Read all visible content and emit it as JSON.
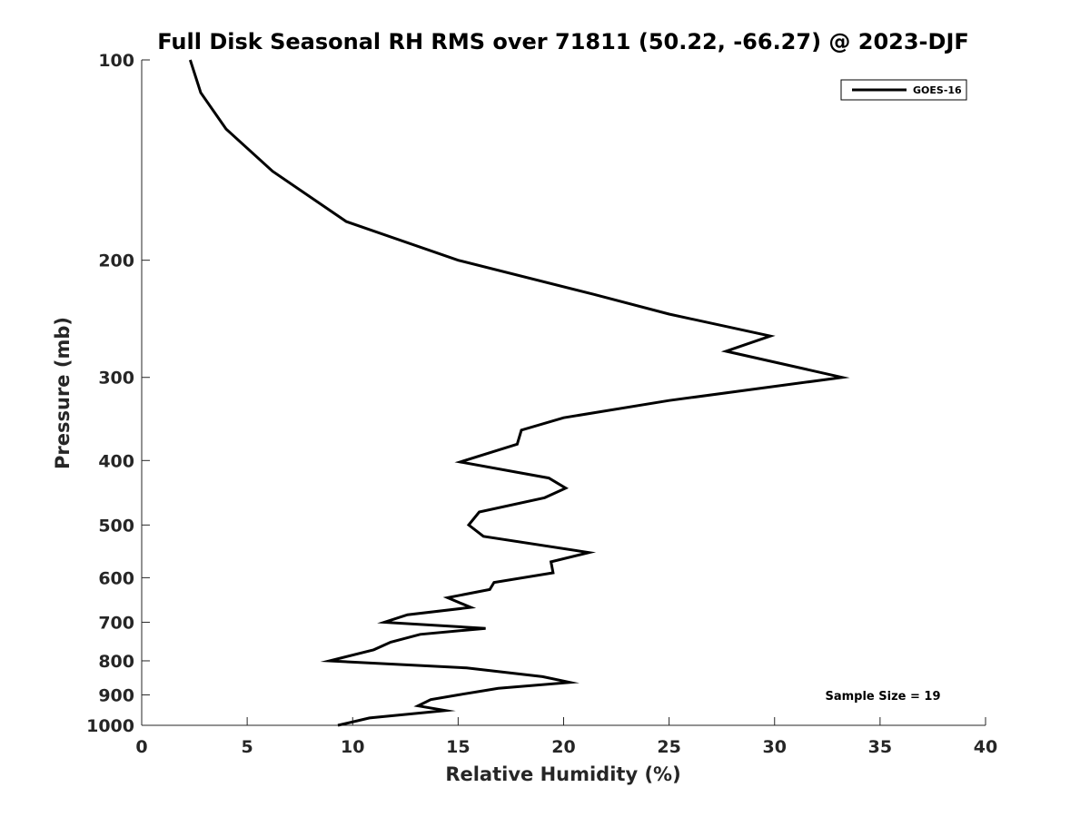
{
  "chart_data": {
    "type": "line",
    "title": "Full Disk Seasonal RH RMS over 71811 (50.22, -66.27) @ 2023-DJF",
    "xlabel": "Relative Humidity (%)",
    "ylabel": "Pressure (mb)",
    "xlim": [
      0,
      40
    ],
    "ylim": [
      100,
      1000
    ],
    "y_scale": "log",
    "y_reversed": true,
    "x_ticks": [
      0,
      5,
      10,
      15,
      20,
      25,
      30,
      35,
      40
    ],
    "y_ticks": [
      100,
      200,
      300,
      400,
      500,
      600,
      700,
      800,
      900,
      1000
    ],
    "grid": false,
    "legend_position": "top-right",
    "annotation": "Sample Size = 19",
    "series": [
      {
        "name": "GOES-16",
        "color": "#000000",
        "x": [
          2.3,
          2.8,
          4.0,
          6.2,
          9.7,
          15.0,
          21.4,
          25.0,
          29.8,
          27.7,
          33.2,
          25.0,
          20.0,
          18.0,
          17.8,
          15.1,
          19.3,
          20.1,
          19.1,
          16.0,
          15.5,
          16.2,
          21.2,
          19.4,
          19.5,
          16.7,
          16.5,
          14.5,
          15.6,
          12.6,
          11.5,
          16.3,
          13.2,
          11.8,
          11.0,
          8.9,
          15.4,
          19.0,
          20.3,
          16.9,
          15.0,
          13.7,
          13.1,
          14.4,
          10.8,
          9.3
        ],
        "y": [
          100,
          112,
          127,
          147,
          175,
          200,
          225,
          241,
          260,
          274,
          300,
          325,
          345,
          360,
          378,
          402,
          425,
          440,
          455,
          478,
          500,
          520,
          550,
          568,
          590,
          610,
          625,
          643,
          665,
          682,
          700,
          715,
          730,
          750,
          770,
          800,
          820,
          845,
          862,
          880,
          900,
          915,
          935,
          950,
          975,
          1000
        ]
      }
    ]
  }
}
